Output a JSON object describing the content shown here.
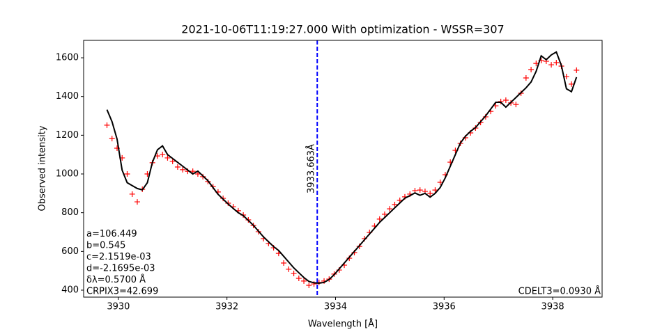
{
  "chart_data": {
    "type": "line",
    "title": "2021-10-06T11:19:27.000 With optimization - WSSR=307",
    "xlabel": "Wavelength [Å]",
    "ylabel": "Observed intensity",
    "xlim": [
      3929.36,
      3938.91
    ],
    "ylim": [
      364,
      1690
    ],
    "xticks": [
      3930,
      3932,
      3934,
      3936,
      3938
    ],
    "yticks": [
      400,
      600,
      800,
      1000,
      1200,
      1400,
      1600
    ],
    "x": [
      3929.79,
      3929.883,
      3929.976,
      3930.069,
      3930.162,
      3930.255,
      3930.348,
      3930.441,
      3930.534,
      3930.627,
      3930.72,
      3930.813,
      3930.906,
      3930.999,
      3931.092,
      3931.185,
      3931.278,
      3931.371,
      3931.464,
      3931.557,
      3931.65,
      3931.743,
      3931.836,
      3931.929,
      3932.022,
      3932.115,
      3932.208,
      3932.301,
      3932.394,
      3932.487,
      3932.58,
      3932.673,
      3932.766,
      3932.859,
      3932.952,
      3933.045,
      3933.138,
      3933.231,
      3933.324,
      3933.417,
      3933.51,
      3933.603,
      3933.696,
      3933.789,
      3933.882,
      3933.975,
      3934.068,
      3934.161,
      3934.254,
      3934.347,
      3934.44,
      3934.533,
      3934.626,
      3934.719,
      3934.812,
      3934.905,
      3934.998,
      3935.091,
      3935.184,
      3935.277,
      3935.37,
      3935.463,
      3935.556,
      3935.649,
      3935.742,
      3935.835,
      3935.928,
      3936.021,
      3936.114,
      3936.207,
      3936.3,
      3936.393,
      3936.486,
      3936.579,
      3936.672,
      3936.765,
      3936.858,
      3936.951,
      3937.044,
      3937.137,
      3937.23,
      3937.323,
      3937.416,
      3937.509,
      3937.602,
      3937.695,
      3937.788,
      3937.881,
      3937.974,
      3938.067,
      3938.16,
      3938.253,
      3938.346,
      3938.439
    ],
    "series": [
      {
        "style": "markers",
        "color": "#ff0000",
        "values": [
          1252,
          1183,
          1133,
          1083,
          1000,
          896,
          856,
          921,
          1000,
          1058,
          1093,
          1100,
          1083,
          1065,
          1036,
          1022,
          1014,
          1014,
          1000,
          986,
          961,
          935,
          907,
          874,
          849,
          831,
          810,
          788,
          763,
          734,
          702,
          666,
          641,
          619,
          590,
          540,
          508,
          486,
          461,
          447,
          425,
          432,
          440,
          447,
          457,
          483,
          504,
          529,
          565,
          594,
          626,
          666,
          698,
          731,
          767,
          792,
          820,
          842,
          864,
          882,
          896,
          914,
          917,
          910,
          900,
          917,
          957,
          996,
          1061,
          1122,
          1158,
          1187,
          1212,
          1237,
          1266,
          1295,
          1323,
          1352,
          1374,
          1381,
          1367,
          1359,
          1417,
          1496,
          1539,
          1571,
          1586,
          1582,
          1564,
          1575,
          1557,
          1503,
          1464,
          1536
        ]
      },
      {
        "style": "line",
        "color": "#000000",
        "values": [
          1332,
          1270,
          1180,
          1020,
          955,
          940,
          925,
          918,
          955,
          1060,
          1125,
          1145,
          1100,
          1080,
          1060,
          1040,
          1020,
          1000,
          1015,
          990,
          965,
          930,
          895,
          870,
          845,
          822,
          800,
          785,
          760,
          735,
          705,
          675,
          650,
          625,
          605,
          575,
          545,
          515,
          490,
          465,
          445,
          438,
          436,
          440,
          455,
          480,
          510,
          540,
          570,
          600,
          630,
          660,
          690,
          720,
          750,
          775,
          800,
          825,
          850,
          875,
          888,
          902,
          890,
          900,
          880,
          900,
          930,
          980,
          1040,
          1100,
          1160,
          1195,
          1220,
          1240,
          1270,
          1300,
          1335,
          1370,
          1370,
          1345,
          1370,
          1395,
          1420,
          1445,
          1475,
          1530,
          1610,
          1590,
          1615,
          1630,
          1560,
          1440,
          1425,
          1500
        ]
      }
    ],
    "vline": {
      "x": 3933.663,
      "label": "3933.663Å",
      "color": "#0000ff"
    },
    "annotations": [
      "a=106.449",
      "b=0.545",
      "c=2.1519e-03",
      "d=-2.1695e-03",
      "δλ=0.5700 Å",
      "CRPIX3=42.699"
    ],
    "annotation_right": "CDELT3=0.0930 Å"
  }
}
